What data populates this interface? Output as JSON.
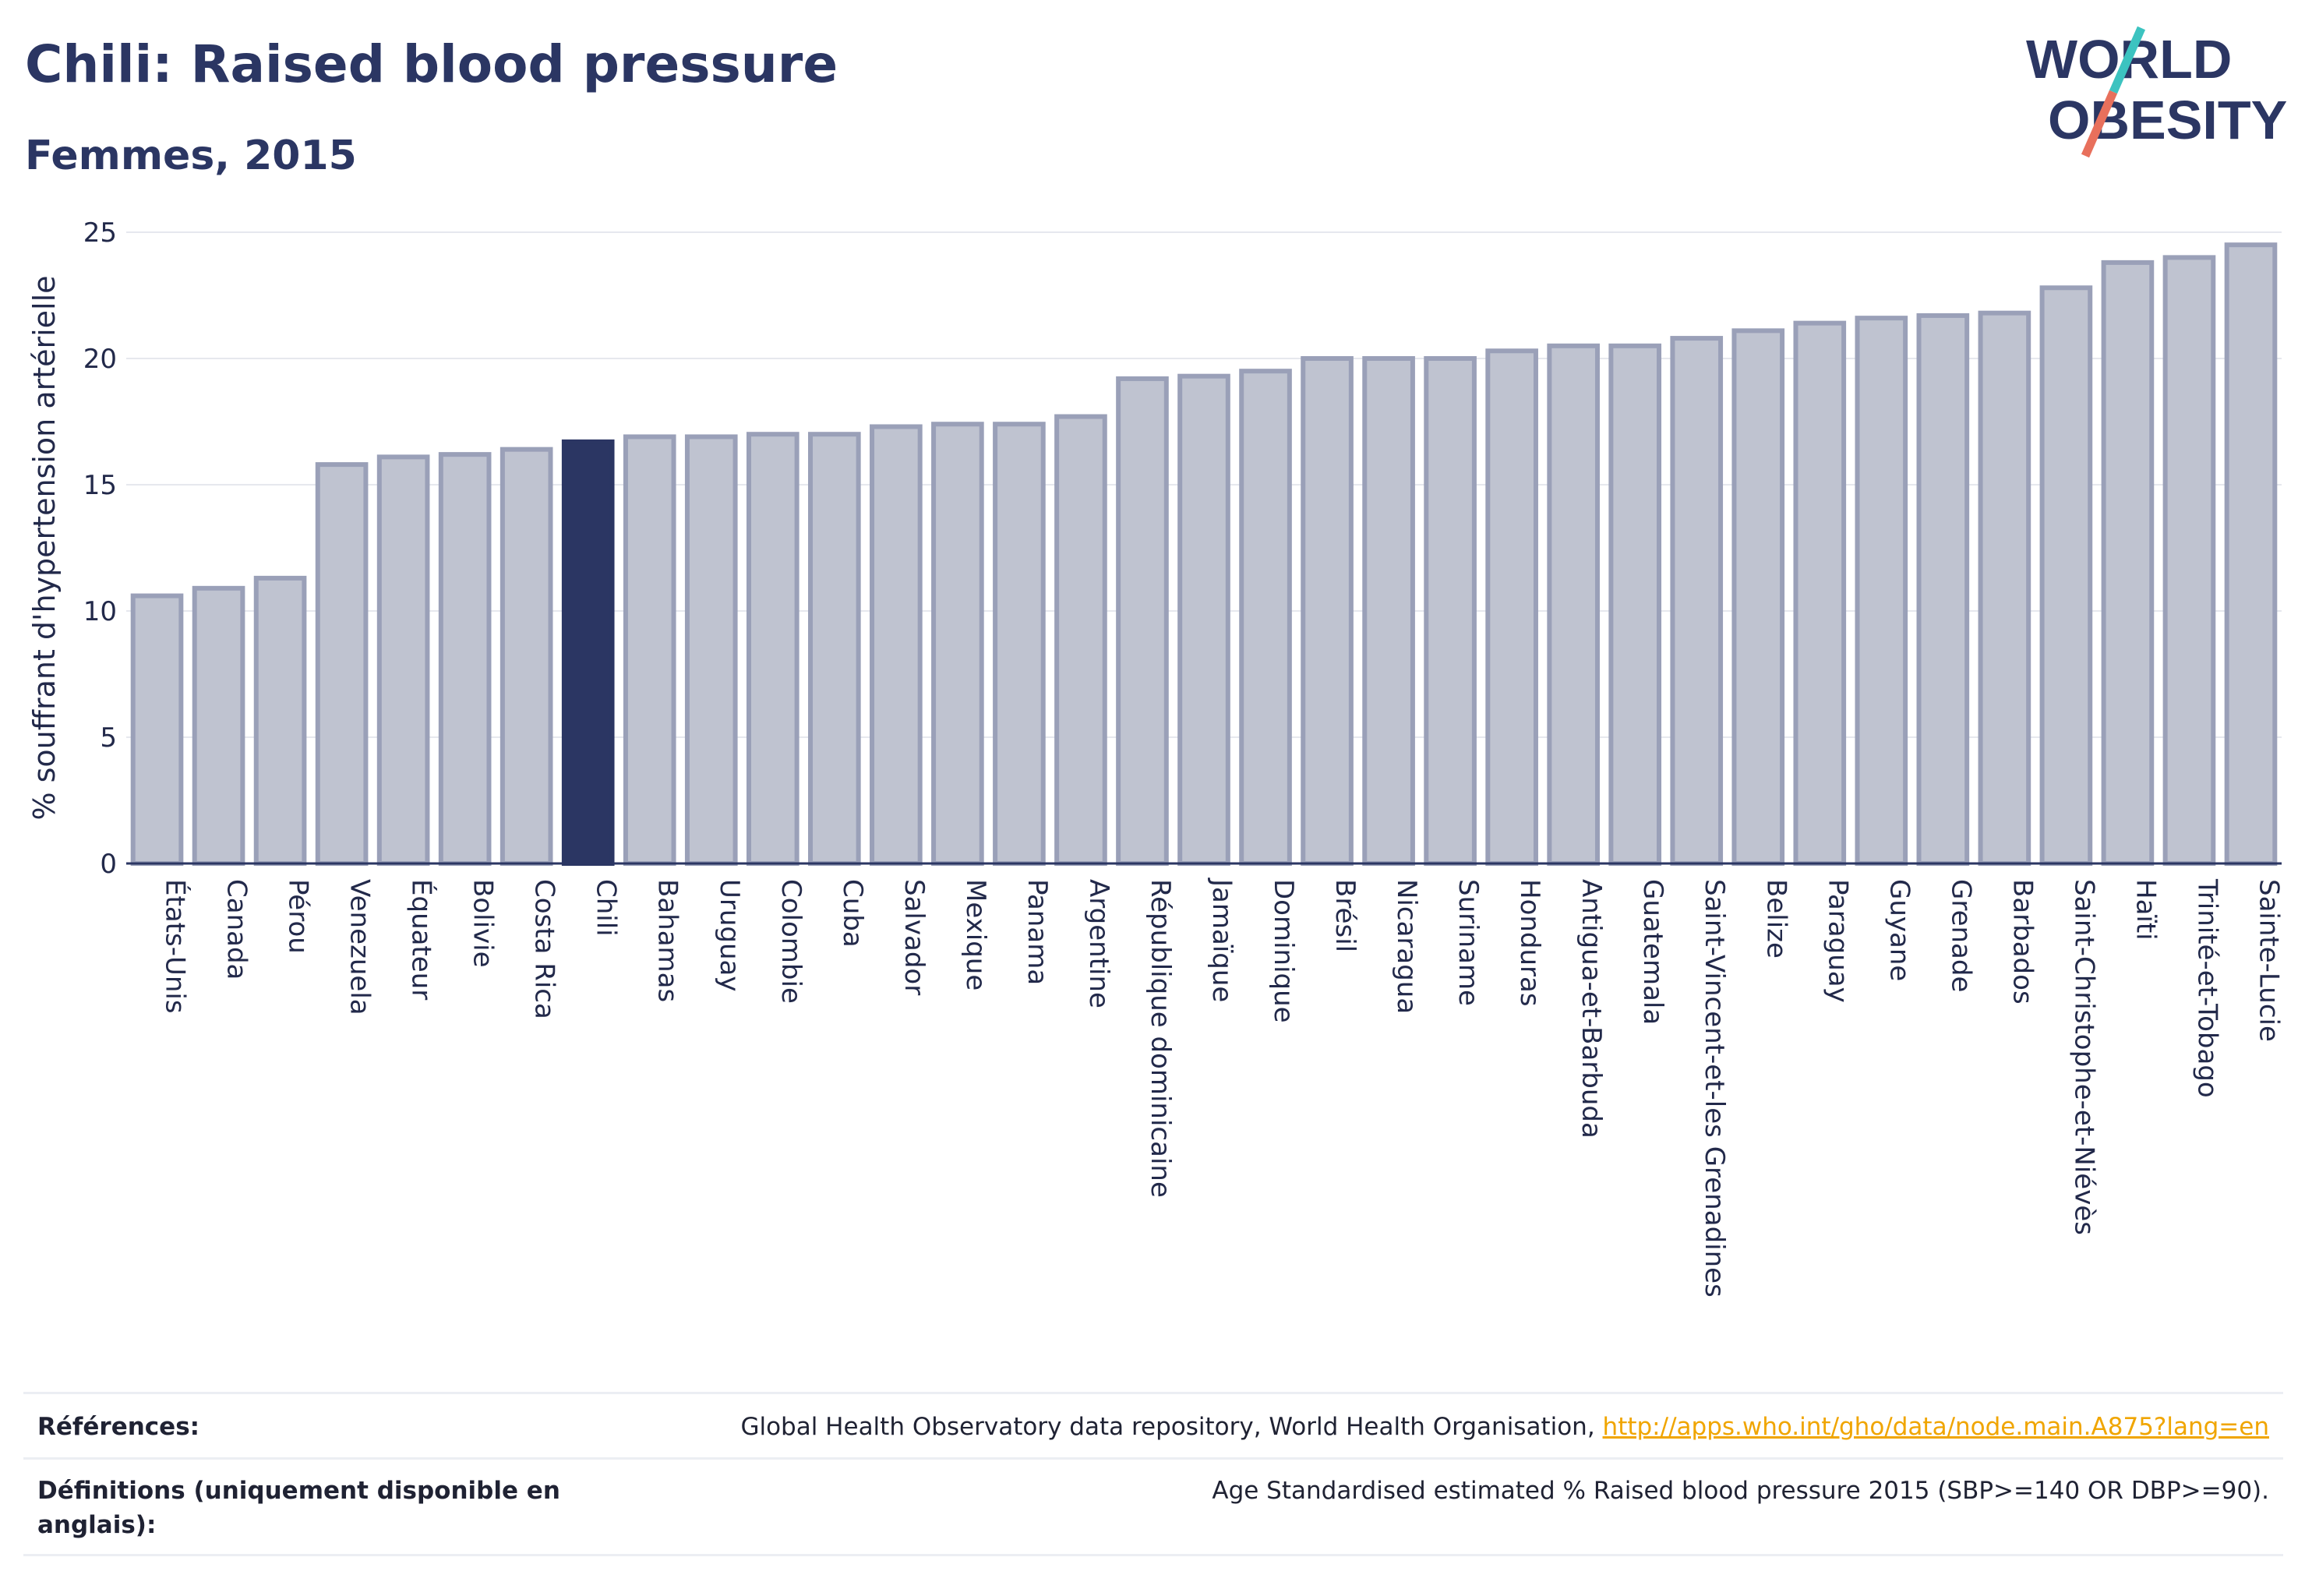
{
  "header": {
    "title": "Chili: Raised blood pressure",
    "subtitle": "Femmes, 2015"
  },
  "logo": {
    "line1": "WORLD",
    "line2": "OBESITY"
  },
  "colors": {
    "bar_fill": "#bfc3d0",
    "bar_stroke": "#9aa0b8",
    "highlight_fill": "#2b3663",
    "title": "#2b3663",
    "link": "#f0a500",
    "logo_teal": "#3cc3c0",
    "logo_coral": "#e8705c"
  },
  "chart_data": {
    "type": "bar",
    "title": "Chili: Raised blood pressure",
    "subtitle": "Femmes, 2015",
    "xlabel": "",
    "ylabel": "% souffrant d'hypertension artérielle",
    "ylim": [
      0,
      25
    ],
    "yticks": [
      "0",
      "5",
      "10",
      "15",
      "20",
      "25"
    ],
    "grid": true,
    "highlight": "Chili",
    "categories": [
      "États-Unis",
      "Canada",
      "Pérou",
      "Venezuela",
      "Équateur",
      "Bolivie",
      "Costa Rica",
      "Chili",
      "Bahamas",
      "Uruguay",
      "Colombie",
      "Cuba",
      "Salvador",
      "Mexique",
      "Panama",
      "Argentine",
      "République dominicaine",
      "Jamaïque",
      "Dominique",
      "Brésil",
      "Nicaragua",
      "Suriname",
      "Honduras",
      "Antigua-et-Barbuda",
      "Guatemala",
      "Saint-Vincent-et-les Grenadines",
      "Belize",
      "Paraguay",
      "Guyane",
      "Grenade",
      "Barbados",
      "Saint-Christophe-et-Niévès",
      "Haïti",
      "Trinité-et-Tobago",
      "Sainte-Lucie"
    ],
    "values": [
      10.6,
      10.9,
      11.3,
      15.8,
      16.1,
      16.2,
      16.4,
      16.7,
      16.9,
      16.9,
      17.0,
      17.0,
      17.3,
      17.4,
      17.4,
      17.7,
      19.2,
      19.3,
      19.5,
      20.0,
      20.0,
      20.0,
      20.3,
      20.5,
      20.5,
      20.8,
      21.1,
      21.4,
      21.6,
      21.7,
      21.8,
      22.8,
      23.8,
      24.0,
      24.5
    ]
  },
  "footer": {
    "references_label": "Références:",
    "references_text": "Global Health Observatory data repository, World Health Organisation,",
    "references_link": "http://apps.who.int/gho/data/node.main.A875?lang=en",
    "definitions_label": "Définitions (uniquement disponible en anglais):",
    "definitions_text": "Age Standardised estimated % Raised blood pressure 2015 (SBP>=140 OR DBP>=90)."
  }
}
